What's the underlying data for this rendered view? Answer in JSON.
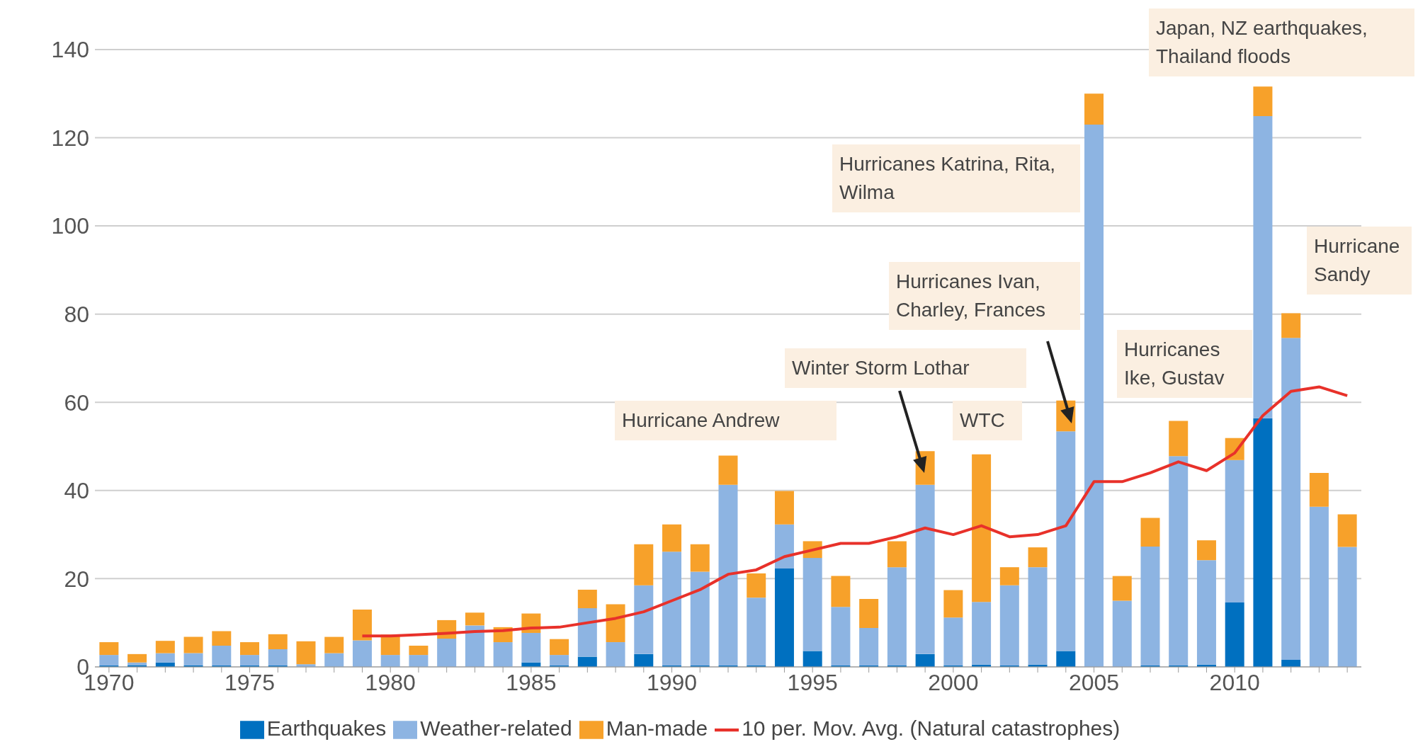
{
  "chart_data": {
    "type": "bar",
    "stacked": true,
    "categories": [
      "1970",
      null,
      null,
      null,
      null,
      "1975",
      null,
      null,
      null,
      null,
      "1980",
      null,
      null,
      null,
      null,
      "1985",
      null,
      null,
      null,
      null,
      "1990",
      null,
      null,
      null,
      null,
      "1995",
      null,
      null,
      null,
      null,
      "2000",
      null,
      null,
      null,
      null,
      "2005",
      null,
      null,
      null,
      null,
      "2010",
      null,
      null,
      null,
      null
    ],
    "series": [
      {
        "name": "Earthquakes",
        "color": "#0070c0",
        "values": [
          0.3,
          0.4,
          1,
          0.3,
          0.3,
          0.3,
          0.3,
          0,
          0,
          0,
          0,
          0,
          0,
          0,
          0,
          1,
          0.3,
          2.3,
          0,
          2.9,
          0.3,
          0.3,
          0.3,
          0.3,
          22.3,
          3.6,
          0.3,
          0.3,
          0.3,
          2.9,
          0.3,
          0.5,
          0.3,
          0.5,
          3.6,
          0,
          0,
          0.3,
          0.3,
          0.5,
          14.6,
          56.4,
          1.6,
          0,
          0
        ]
      },
      {
        "name": "Weather-related",
        "color": "#8db4e2",
        "values": [
          2.4,
          0.6,
          2.1,
          2.8,
          4.5,
          2.4,
          3.7,
          0.6,
          3.1,
          6,
          2.7,
          2.7,
          6.4,
          9.4,
          5.6,
          6.7,
          2.4,
          11,
          5.6,
          15.6,
          25.8,
          21.3,
          41,
          15.4,
          10,
          21.1,
          13.3,
          8.5,
          22.3,
          38.4,
          10.9,
          14.2,
          18.2,
          22.1,
          49.8,
          123,
          15,
          27,
          47.5,
          23.7,
          32.3,
          68.5,
          73,
          36.3,
          27.2
        ]
      },
      {
        "name": "Man-made",
        "color": "#f7a12a",
        "values": [
          2.9,
          1.9,
          2.8,
          3.7,
          3.3,
          2.9,
          3.4,
          5.2,
          3.7,
          7,
          4.6,
          2.1,
          4.2,
          2.9,
          3.4,
          4.4,
          3.6,
          4.2,
          8.6,
          9.3,
          6.2,
          6.2,
          6.6,
          5.5,
          7.6,
          3.8,
          7,
          6.6,
          5.9,
          7.6,
          6.2,
          33.5,
          4.1,
          4.5,
          7,
          7,
          5.6,
          6.5,
          8,
          4.5,
          5,
          6.7,
          5.6,
          7.7,
          7.4
        ]
      },
      {
        "name": "10 per. Mov. Avg. (Natural catastrophes)",
        "type": "line",
        "color": "#e8312a",
        "values": [
          null,
          null,
          null,
          null,
          null,
          null,
          null,
          null,
          null,
          7,
          7,
          7.3,
          7.6,
          8,
          8.2,
          8.8,
          9,
          10,
          11,
          12.5,
          15,
          17.5,
          21,
          22,
          25,
          26.5,
          28,
          28,
          29.5,
          31.5,
          30,
          32,
          29.5,
          30,
          32,
          42,
          42,
          44,
          46.5,
          44.5,
          48.5,
          57,
          62.5,
          63.5,
          61.5
        ]
      }
    ],
    "ylim": [
      0,
      140
    ],
    "yticks": [
      0,
      20,
      40,
      60,
      80,
      100,
      120,
      140
    ],
    "grid": "y",
    "legend": "bottom",
    "marker": "none",
    "annotations": [
      "Hurricane Andrew",
      "Winter Storm Lothar",
      "WTC",
      "Hurricanes Ivan, Charley, Frances",
      "Hurricanes Katrina, Rita, Wilma",
      "Hurricanes Ike, Gustav",
      "Hurricane Sandy",
      "Japan, NZ earthquakes, Thailand floods"
    ]
  }
}
